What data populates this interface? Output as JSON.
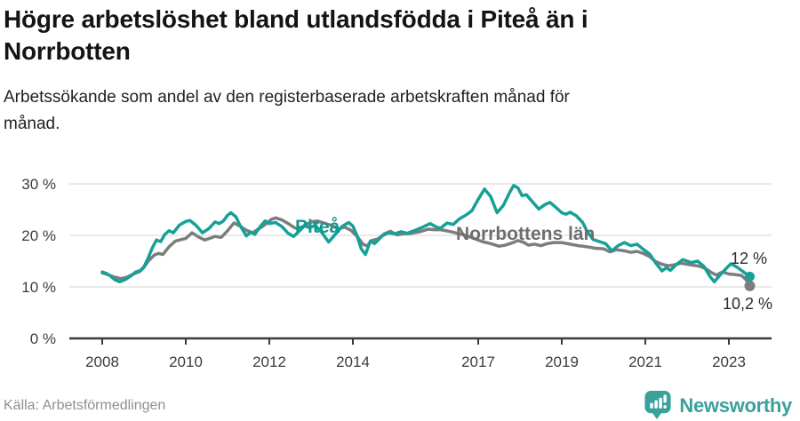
{
  "header": {
    "title_lines": [
      "Högre arbetslöshet bland utlandsfödda i Piteå än i",
      "Norrbotten"
    ],
    "subtitle_lines": [
      "Arbetssökande som andel av den registerbaserade arbetskraften månad för",
      "månad."
    ]
  },
  "chart_data": {
    "type": "line",
    "x_unit": "decimal-year (monthly observations)",
    "y_unit": "percent of register-based labour force",
    "grid": "horizontal",
    "legend_position": "inline-labels",
    "xlim": [
      2007.6,
      2023.9
    ],
    "ylim": [
      0,
      32
    ],
    "x_ticks": [
      {
        "label": "2008",
        "value": 2008
      },
      {
        "label": "2010",
        "value": 2010
      },
      {
        "label": "2012",
        "value": 2012
      },
      {
        "label": "2014",
        "value": 2014
      },
      {
        "label": "2017",
        "value": 2017
      },
      {
        "label": "2019",
        "value": 2019
      },
      {
        "label": "2021",
        "value": 2021
      },
      {
        "label": "2023",
        "value": 2023
      }
    ],
    "y_ticks": [
      {
        "label": "0 %",
        "value": 0
      },
      {
        "label": "10 %",
        "value": 10
      },
      {
        "label": "20 %",
        "value": 20
      },
      {
        "label": "30 %",
        "value": 30
      }
    ],
    "series": [
      {
        "name": "Norrbottens län",
        "color": "#7d7d7d",
        "label_color": "#6e6e6e",
        "end_label": "10,2 %",
        "end_value": 10.2,
        "points": [
          [
            2008.0,
            12.7
          ],
          [
            2008.1,
            12.5
          ],
          [
            2008.25,
            12.0
          ],
          [
            2008.45,
            11.6
          ],
          [
            2008.6,
            11.9
          ],
          [
            2008.75,
            12.5
          ],
          [
            2008.9,
            13.0
          ],
          [
            2009.0,
            13.8
          ],
          [
            2009.1,
            15.0
          ],
          [
            2009.25,
            16.2
          ],
          [
            2009.35,
            16.5
          ],
          [
            2009.45,
            16.3
          ],
          [
            2009.6,
            17.8
          ],
          [
            2009.75,
            18.9
          ],
          [
            2009.9,
            19.2
          ],
          [
            2010.0,
            19.4
          ],
          [
            2010.15,
            20.5
          ],
          [
            2010.3,
            19.7
          ],
          [
            2010.45,
            19.1
          ],
          [
            2010.6,
            19.5
          ],
          [
            2010.7,
            19.8
          ],
          [
            2010.85,
            19.6
          ],
          [
            2011.0,
            20.9
          ],
          [
            2011.15,
            22.4
          ],
          [
            2011.3,
            21.8
          ],
          [
            2011.45,
            21.0
          ],
          [
            2011.6,
            20.5
          ],
          [
            2011.75,
            21.3
          ],
          [
            2011.9,
            22.1
          ],
          [
            2012.05,
            23.1
          ],
          [
            2012.15,
            23.4
          ],
          [
            2012.3,
            23.0
          ],
          [
            2012.45,
            22.3
          ],
          [
            2012.6,
            21.5
          ],
          [
            2012.7,
            21.2
          ],
          [
            2012.85,
            22.0
          ],
          [
            2013.0,
            22.6
          ],
          [
            2013.15,
            22.8
          ],
          [
            2013.3,
            22.4
          ],
          [
            2013.5,
            21.9
          ],
          [
            2013.65,
            21.3
          ],
          [
            2013.8,
            21.6
          ],
          [
            2013.95,
            21.0
          ],
          [
            2014.1,
            19.8
          ],
          [
            2014.25,
            18.2
          ],
          [
            2014.35,
            18.0
          ],
          [
            2014.45,
            19.0
          ],
          [
            2014.6,
            19.3
          ],
          [
            2014.75,
            20.3
          ],
          [
            2014.9,
            20.8
          ],
          [
            2015.05,
            20.1
          ],
          [
            2015.2,
            20.3
          ],
          [
            2015.4,
            20.4
          ],
          [
            2015.6,
            20.7
          ],
          [
            2015.8,
            21.2
          ],
          [
            2015.95,
            21.1
          ],
          [
            2016.1,
            21.1
          ],
          [
            2016.3,
            20.8
          ],
          [
            2016.5,
            20.4
          ],
          [
            2016.7,
            20.0
          ],
          [
            2016.9,
            19.4
          ],
          [
            2017.1,
            18.8
          ],
          [
            2017.3,
            18.4
          ],
          [
            2017.5,
            17.9
          ],
          [
            2017.65,
            18.1
          ],
          [
            2017.8,
            18.5
          ],
          [
            2017.95,
            19.0
          ],
          [
            2018.1,
            18.6
          ],
          [
            2018.2,
            18.1
          ],
          [
            2018.35,
            18.3
          ],
          [
            2018.5,
            18.0
          ],
          [
            2018.65,
            18.4
          ],
          [
            2018.8,
            18.6
          ],
          [
            2019.0,
            18.6
          ],
          [
            2019.2,
            18.3
          ],
          [
            2019.4,
            18.0
          ],
          [
            2019.6,
            17.8
          ],
          [
            2019.8,
            17.5
          ],
          [
            2020.0,
            17.4
          ],
          [
            2020.15,
            16.8
          ],
          [
            2020.3,
            17.2
          ],
          [
            2020.5,
            17.0
          ],
          [
            2020.65,
            16.7
          ],
          [
            2020.8,
            16.9
          ],
          [
            2020.95,
            16.5
          ],
          [
            2021.1,
            15.9
          ],
          [
            2021.25,
            14.9
          ],
          [
            2021.4,
            14.4
          ],
          [
            2021.55,
            14.1
          ],
          [
            2021.7,
            14.3
          ],
          [
            2021.85,
            14.6
          ],
          [
            2022.0,
            14.4
          ],
          [
            2022.15,
            14.2
          ],
          [
            2022.3,
            14.0
          ],
          [
            2022.45,
            13.5
          ],
          [
            2022.6,
            12.7
          ],
          [
            2022.7,
            12.3
          ],
          [
            2022.85,
            12.9
          ],
          [
            2023.0,
            12.5
          ],
          [
            2023.15,
            12.4
          ],
          [
            2023.3,
            12.2
          ],
          [
            2023.4,
            11.5
          ],
          [
            2023.5,
            10.2
          ]
        ]
      },
      {
        "name": "Piteå",
        "color": "#16a098",
        "label_color": "#0f9a91",
        "end_label": "12 %",
        "end_value": 12,
        "points": [
          [
            2008.0,
            12.9
          ],
          [
            2008.1,
            12.6
          ],
          [
            2008.2,
            12.1
          ],
          [
            2008.3,
            11.4
          ],
          [
            2008.42,
            11.0
          ],
          [
            2008.55,
            11.4
          ],
          [
            2008.7,
            12.2
          ],
          [
            2008.8,
            12.9
          ],
          [
            2008.9,
            13.1
          ],
          [
            2009.0,
            13.9
          ],
          [
            2009.1,
            15.6
          ],
          [
            2009.2,
            17.6
          ],
          [
            2009.3,
            19.1
          ],
          [
            2009.4,
            18.8
          ],
          [
            2009.5,
            20.2
          ],
          [
            2009.6,
            20.9
          ],
          [
            2009.7,
            20.5
          ],
          [
            2009.85,
            22.0
          ],
          [
            2010.0,
            22.7
          ],
          [
            2010.1,
            22.9
          ],
          [
            2010.25,
            21.9
          ],
          [
            2010.4,
            20.5
          ],
          [
            2010.55,
            21.3
          ],
          [
            2010.7,
            22.6
          ],
          [
            2010.8,
            22.3
          ],
          [
            2010.9,
            22.8
          ],
          [
            2011.0,
            23.9
          ],
          [
            2011.08,
            24.4
          ],
          [
            2011.2,
            23.6
          ],
          [
            2011.3,
            21.9
          ],
          [
            2011.45,
            19.9
          ],
          [
            2011.55,
            20.6
          ],
          [
            2011.65,
            20.2
          ],
          [
            2011.8,
            21.9
          ],
          [
            2011.9,
            22.8
          ],
          [
            2012.0,
            22.3
          ],
          [
            2012.15,
            22.5
          ],
          [
            2012.3,
            21.7
          ],
          [
            2012.45,
            20.4
          ],
          [
            2012.58,
            19.8
          ],
          [
            2012.7,
            20.7
          ],
          [
            2012.85,
            21.9
          ],
          [
            2012.95,
            21.5
          ],
          [
            2013.1,
            21.9
          ],
          [
            2013.25,
            20.6
          ],
          [
            2013.42,
            18.7
          ],
          [
            2013.6,
            20.4
          ],
          [
            2013.75,
            21.8
          ],
          [
            2013.9,
            22.5
          ],
          [
            2014.0,
            21.8
          ],
          [
            2014.1,
            19.9
          ],
          [
            2014.2,
            17.4
          ],
          [
            2014.3,
            16.3
          ],
          [
            2014.42,
            18.9
          ],
          [
            2014.52,
            18.4
          ],
          [
            2014.7,
            19.9
          ],
          [
            2014.85,
            20.5
          ],
          [
            2015.0,
            20.3
          ],
          [
            2015.15,
            20.7
          ],
          [
            2015.3,
            20.4
          ],
          [
            2015.5,
            21.0
          ],
          [
            2015.7,
            21.7
          ],
          [
            2015.85,
            22.3
          ],
          [
            2016.0,
            21.6
          ],
          [
            2016.1,
            21.4
          ],
          [
            2016.25,
            22.4
          ],
          [
            2016.4,
            22.1
          ],
          [
            2016.55,
            23.2
          ],
          [
            2016.7,
            23.9
          ],
          [
            2016.85,
            24.8
          ],
          [
            2017.0,
            27.0
          ],
          [
            2017.15,
            29.0
          ],
          [
            2017.3,
            27.5
          ],
          [
            2017.45,
            24.4
          ],
          [
            2017.6,
            25.8
          ],
          [
            2017.75,
            28.3
          ],
          [
            2017.85,
            29.7
          ],
          [
            2017.95,
            29.2
          ],
          [
            2018.05,
            27.7
          ],
          [
            2018.15,
            27.9
          ],
          [
            2018.3,
            26.5
          ],
          [
            2018.45,
            25.1
          ],
          [
            2018.6,
            26.0
          ],
          [
            2018.72,
            26.4
          ],
          [
            2018.85,
            25.5
          ],
          [
            2019.0,
            24.4
          ],
          [
            2019.1,
            24.1
          ],
          [
            2019.2,
            24.5
          ],
          [
            2019.35,
            23.8
          ],
          [
            2019.5,
            22.5
          ],
          [
            2019.62,
            20.6
          ],
          [
            2019.75,
            19.2
          ],
          [
            2019.9,
            18.8
          ],
          [
            2020.05,
            18.4
          ],
          [
            2020.2,
            17.0
          ],
          [
            2020.35,
            18.0
          ],
          [
            2020.5,
            18.6
          ],
          [
            2020.65,
            18.0
          ],
          [
            2020.8,
            18.3
          ],
          [
            2020.95,
            17.3
          ],
          [
            2021.1,
            16.4
          ],
          [
            2021.25,
            14.6
          ],
          [
            2021.4,
            13.1
          ],
          [
            2021.5,
            13.7
          ],
          [
            2021.6,
            13.2
          ],
          [
            2021.75,
            14.4
          ],
          [
            2021.9,
            15.3
          ],
          [
            2022.0,
            15.0
          ],
          [
            2022.1,
            14.7
          ],
          [
            2022.25,
            15.0
          ],
          [
            2022.4,
            14.0
          ],
          [
            2022.55,
            12.0
          ],
          [
            2022.65,
            11.0
          ],
          [
            2022.8,
            12.4
          ],
          [
            2022.95,
            13.7
          ],
          [
            2023.05,
            14.5
          ],
          [
            2023.2,
            13.8
          ],
          [
            2023.35,
            12.9
          ],
          [
            2023.5,
            12.0
          ]
        ]
      }
    ]
  },
  "footer": {
    "source": "Källa: Arbetsförmedlingen",
    "brand": "Newsworthy",
    "brand_color": "#3aa19a"
  },
  "icons": {
    "brand_icon": "bar-chart-speech-bubble-icon"
  },
  "colors": {
    "grid": "#dcdcdc",
    "axis": "#3a3a3a",
    "tick_text": "#3c3c3c",
    "annotation_text": "#2b2b2b"
  }
}
